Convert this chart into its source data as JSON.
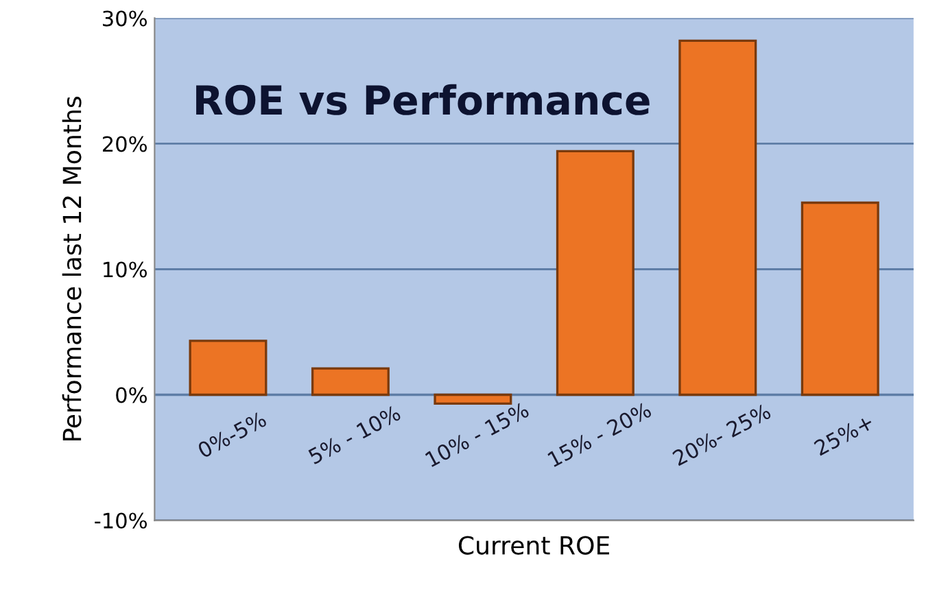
{
  "chart_data": {
    "type": "bar",
    "title": "ROE vs Performance",
    "xlabel": "Current ROE",
    "ylabel": "Performance last 12 Months",
    "categories": [
      "0%-5%",
      "5% - 10%",
      "10% - 15%",
      "15% - 20%",
      "20%- 25%",
      "25%+"
    ],
    "values": [
      4.3,
      2.1,
      -0.7,
      19.4,
      28.2,
      15.3
    ],
    "color": "#ec7424",
    "ylim": [
      -10,
      30
    ],
    "yticks": [
      {
        "value": -10,
        "label": "-10%"
      },
      {
        "value": 0,
        "label": "0%"
      },
      {
        "value": 10,
        "label": "10%"
      },
      {
        "value": 20,
        "label": "20%"
      },
      {
        "value": 30,
        "label": "30%"
      }
    ],
    "grid": "y"
  }
}
